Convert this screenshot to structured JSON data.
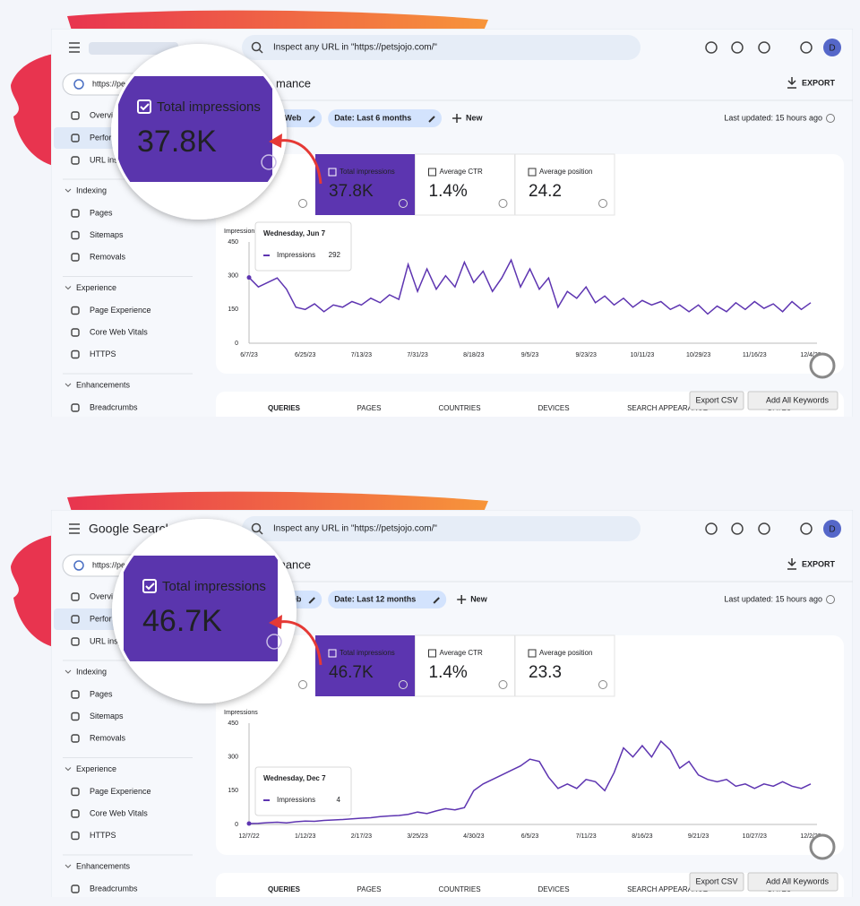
{
  "panels": [
    {
      "search": "Inspect any URL in \"https://petsjojo.com/\"",
      "avatar": "D",
      "property": "https://pe",
      "heading": "mance",
      "export": "EXPORT",
      "nav": [
        "Overvi",
        "Perfor",
        "URL insp"
      ],
      "sections": [
        {
          "title": "Indexing",
          "items": [
            "Pages",
            "Sitemaps",
            "Removals"
          ]
        },
        {
          "title": "Experience",
          "items": [
            "Page Experience",
            "Core Web Vitals",
            "HTTPS"
          ]
        },
        {
          "title": "Enhancements",
          "items": [
            "Breadcrumbs"
          ]
        }
      ],
      "filters": [
        "e: Web",
        "Date: Last 6 months"
      ],
      "new": "New",
      "updated": "Last updated: 15 hours ago",
      "metrics": [
        {
          "label": "Total impressions",
          "value": "37.8K"
        },
        {
          "label": "Average CTR",
          "value": "1.4%"
        },
        {
          "label": "Average position",
          "value": "24.2"
        }
      ],
      "chart": {
        "type": "line",
        "y_label": "Impressions",
        "color": "#5e35b1",
        "ylim": [
          0,
          450
        ],
        "yticks": [
          0,
          150,
          300,
          450
        ],
        "categories": [
          "6/7/23",
          null,
          null,
          null,
          null,
          null,
          "6/25/23",
          null,
          null,
          null,
          null,
          null,
          "7/13/23",
          null,
          null,
          null,
          null,
          null,
          "7/31/23",
          null,
          null,
          null,
          null,
          null,
          "8/18/23",
          null,
          null,
          null,
          null,
          null,
          "9/5/23",
          null,
          null,
          null,
          null,
          null,
          "9/23/23",
          null,
          null,
          null,
          null,
          null,
          "10/11/23",
          null,
          null,
          null,
          null,
          null,
          "10/29/23",
          null,
          null,
          null,
          null,
          null,
          "11/16/23",
          null,
          null,
          null,
          null,
          null,
          "12/4/23"
        ],
        "values": [
          292,
          250,
          270,
          290,
          240,
          160,
          150,
          175,
          140,
          170,
          160,
          185,
          170,
          200,
          180,
          215,
          195,
          350,
          230,
          330,
          240,
          300,
          250,
          360,
          270,
          320,
          230,
          290,
          370,
          250,
          330,
          240,
          290,
          160,
          230,
          200,
          250,
          180,
          210,
          170,
          200,
          160,
          190,
          170,
          185,
          150,
          170,
          140,
          170,
          130,
          165,
          140,
          180,
          150,
          185,
          155,
          175,
          140,
          185,
          150,
          180
        ],
        "tooltip": {
          "date": "Wednesday, Jun 7"
        }
      },
      "tabs": [
        "QUERIES",
        "PAGES",
        "COUNTRIES",
        "DEVICES",
        "SEARCH APPEARANCE",
        "DATES"
      ],
      "buttons": [
        "Export CSV",
        "Add All Keywords"
      ]
    },
    {
      "logo": "Google Search C",
      "search": "Inspect any URL in \"https://petsjojo.com/\"",
      "avatar": "D",
      "property": "https://pe",
      "heading": "mance",
      "export": "EXPORT",
      "nav": [
        "Overvi",
        "Perfor",
        "URL insp"
      ],
      "sections": [
        {
          "title": "Indexing",
          "items": [
            "Pages",
            "Sitemaps",
            "Removals"
          ]
        },
        {
          "title": "Experience",
          "items": [
            "Page Experience",
            "Core Web Vitals",
            "HTTPS"
          ]
        },
        {
          "title": "Enhancements",
          "items": [
            "Breadcrumbs"
          ]
        }
      ],
      "filters": [
        "e: Web",
        "Date: Last 12 months"
      ],
      "new": "New",
      "updated": "Last updated: 15 hours ago",
      "metrics": [
        {
          "label": "Total impressions",
          "value": "46.7K"
        },
        {
          "label": "Average CTR",
          "value": "1.4%"
        },
        {
          "label": "Average position",
          "value": "23.3"
        }
      ],
      "chart": {
        "type": "line",
        "y_label": "Impressions",
        "color": "#5e35b1",
        "ylim": [
          0,
          450
        ],
        "yticks": [
          0,
          150,
          300,
          450
        ],
        "categories": [
          "12/7/22",
          null,
          null,
          null,
          null,
          null,
          "1/12/23",
          null,
          null,
          null,
          null,
          null,
          "2/17/23",
          null,
          null,
          null,
          null,
          null,
          "3/25/23",
          null,
          null,
          null,
          null,
          null,
          "4/30/23",
          null,
          null,
          null,
          null,
          null,
          "6/5/23",
          null,
          null,
          null,
          null,
          null,
          "7/11/23",
          null,
          null,
          null,
          null,
          null,
          "8/16/23",
          null,
          null,
          null,
          null,
          null,
          "9/21/23",
          null,
          null,
          null,
          null,
          null,
          "10/27/23",
          null,
          null,
          null,
          null,
          null,
          "12/2/23"
        ],
        "values": [
          4,
          5,
          8,
          10,
          7,
          12,
          15,
          14,
          18,
          20,
          22,
          25,
          28,
          30,
          35,
          38,
          40,
          45,
          55,
          48,
          60,
          70,
          65,
          75,
          150,
          180,
          200,
          220,
          240,
          260,
          290,
          280,
          210,
          160,
          180,
          160,
          200,
          190,
          150,
          230,
          340,
          300,
          350,
          300,
          370,
          330,
          250,
          280,
          220,
          200,
          190,
          200,
          170,
          180,
          160,
          180,
          170,
          190,
          170,
          160,
          180
        ],
        "tooltip": {
          "date": "Wednesday, Dec 7"
        }
      },
      "tabs": [
        "QUERIES",
        "PAGES",
        "COUNTRIES",
        "DEVICES",
        "SEARCH APPEARANCE",
        "DATES"
      ],
      "buttons": [
        "Export CSV",
        "Add All Keywords"
      ]
    }
  ]
}
